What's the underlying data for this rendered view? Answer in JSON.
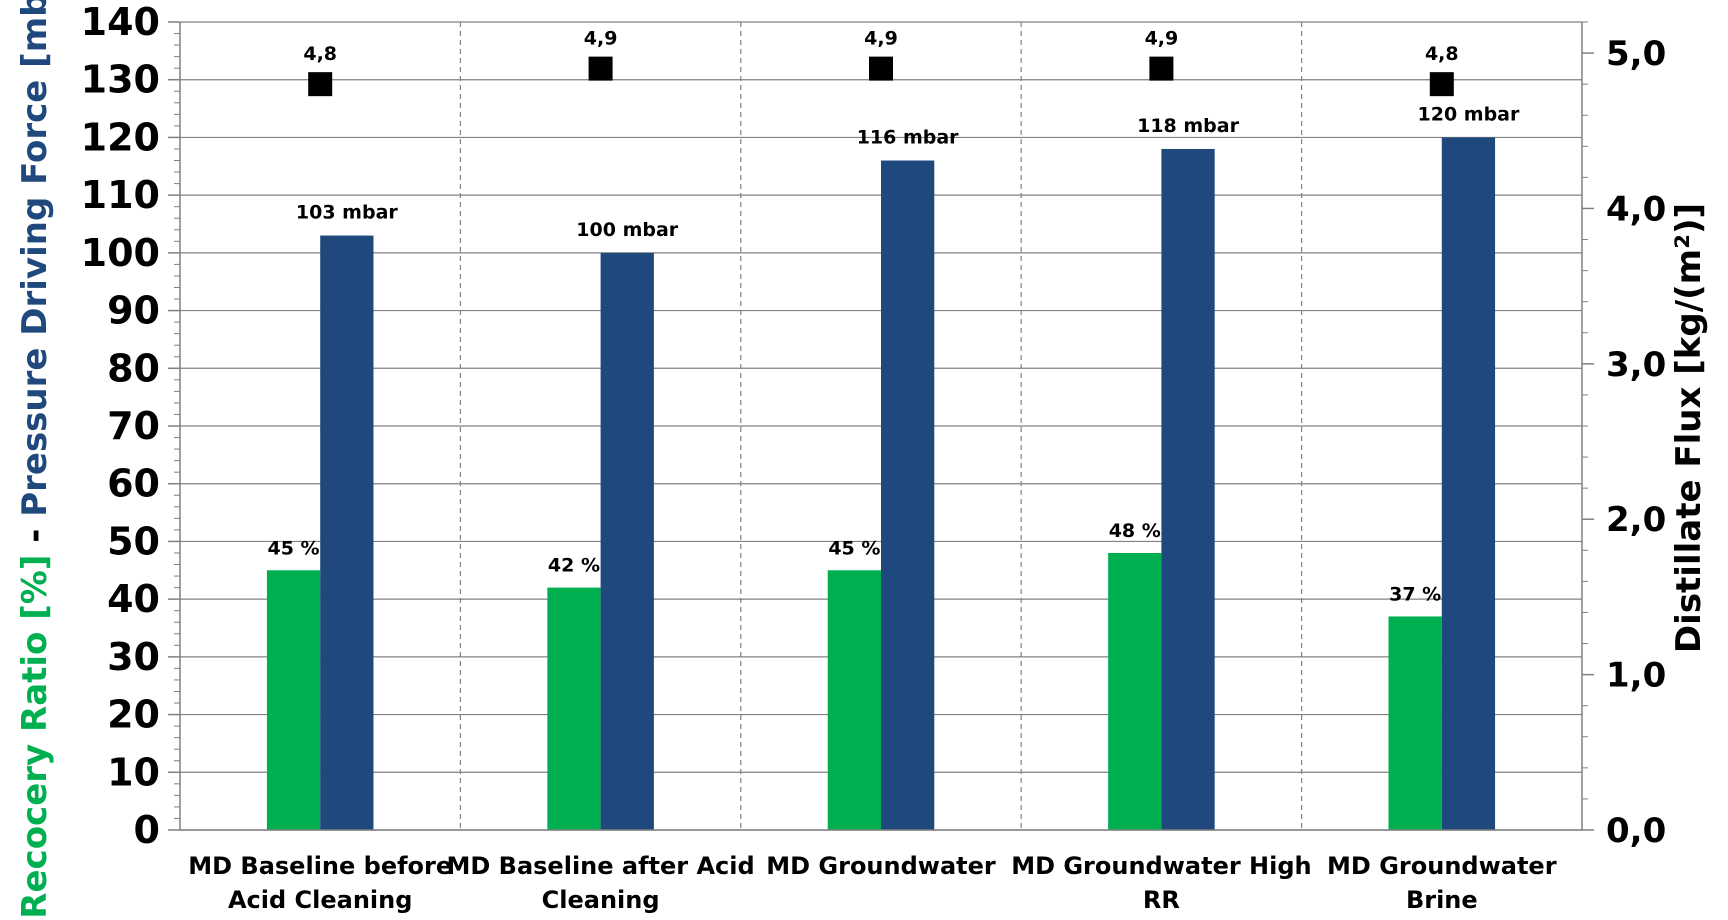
{
  "chart_data": {
    "type": "bar",
    "categories": [
      [
        "MD Baseline before",
        "Acid Cleaning"
      ],
      [
        "MD Baseline after Acid",
        "Cleaning"
      ],
      [
        "MD Groundwater"
      ],
      [
        "MD Groundwater High",
        "RR"
      ],
      [
        "MD Groundwater",
        "Brine"
      ]
    ],
    "series": [
      {
        "axis": "left",
        "color": "#00b050",
        "values": [
          45,
          42,
          45,
          48,
          37
        ],
        "labels": [
          "45 %",
          "42 %",
          "45 %",
          "48 %",
          "37 %"
        ]
      },
      {
        "axis": "left",
        "color": "#1f497d",
        "values": [
          103,
          100,
          116,
          118,
          120
        ],
        "labels": [
          "103 mbar",
          "100 mbar",
          "116 mbar",
          "118 mbar",
          "120 mbar"
        ]
      },
      {
        "axis": "right",
        "marker": "square",
        "color": "#000000",
        "values": [
          4.8,
          4.9,
          4.9,
          4.9,
          4.8
        ],
        "labels": [
          "4,8",
          "4,9",
          "4,9",
          "4,9",
          "4,8"
        ]
      }
    ],
    "left_axis": {
      "label_parts": [
        {
          "text": "Recocery Ratio [%]",
          "color": "#00b050"
        },
        {
          "text": " - ",
          "color": "#000000"
        },
        {
          "text": "Pressure Driving Force [mbar]",
          "color": "#1f497d"
        }
      ],
      "ylim": [
        0,
        140
      ],
      "ticks": [
        "0",
        "10",
        "20",
        "30",
        "40",
        "50",
        "60",
        "70",
        "80",
        "90",
        "100",
        "110",
        "120",
        "130",
        "140"
      ]
    },
    "right_axis": {
      "label": "Distillate Flux [kg/(m²)]",
      "ylim": [
        0,
        5.2
      ],
      "ticks": [
        "0,0",
        "1,0",
        "2,0",
        "3,0",
        "4,0",
        "5,0"
      ]
    },
    "grid": true
  }
}
